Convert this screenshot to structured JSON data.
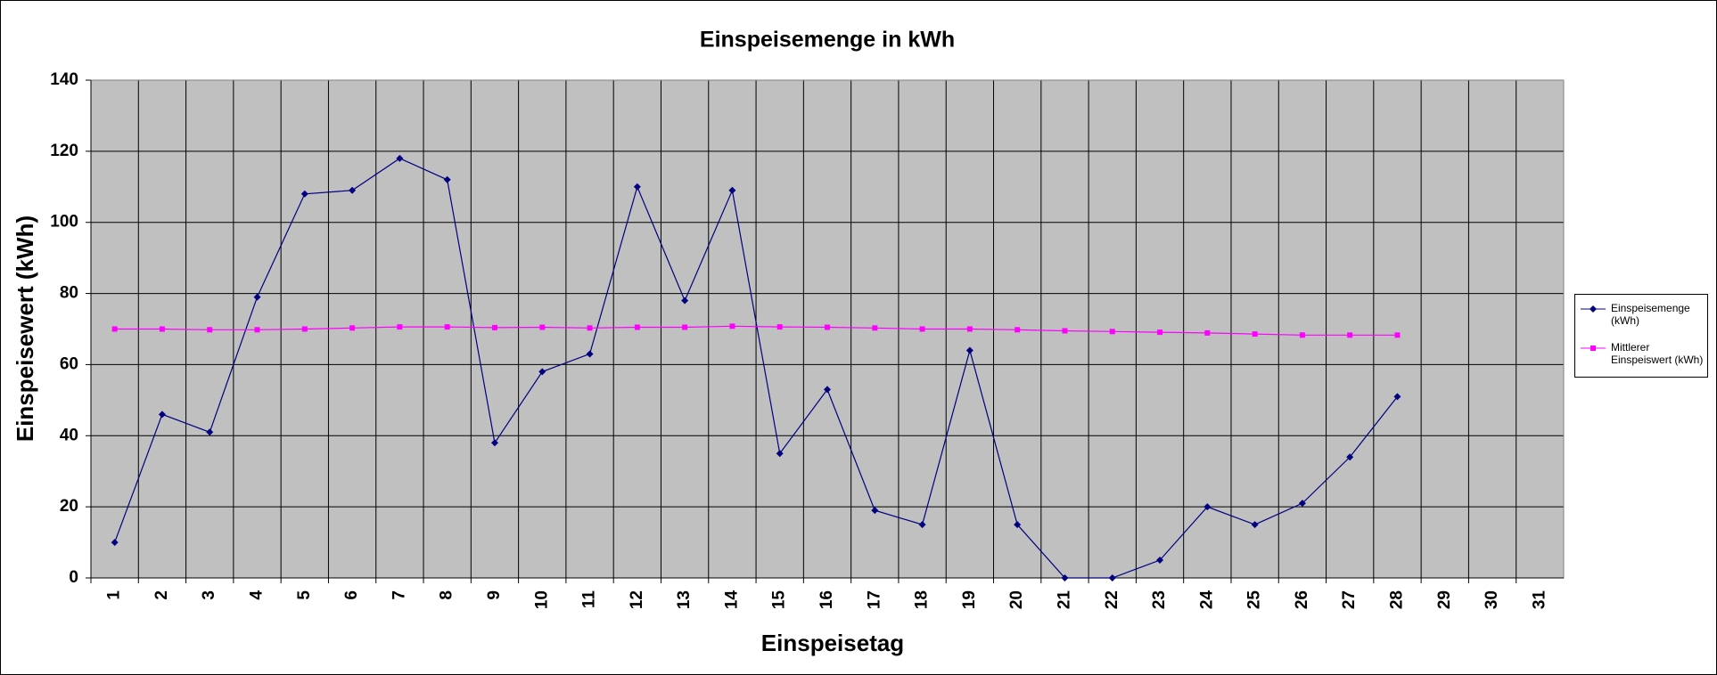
{
  "chart_data": {
    "type": "line",
    "title": "Einspeisemenge in kWh",
    "x_label": "Einspeisetag",
    "y_label": "Einspeisewert  (kWh)",
    "categories": [
      "1",
      "2",
      "3",
      "4",
      "5",
      "6",
      "7",
      "8",
      "9",
      "10",
      "11",
      "12",
      "13",
      "14",
      "15",
      "16",
      "17",
      "18",
      "19",
      "20",
      "21",
      "22",
      "23",
      "24",
      "25",
      "26",
      "27",
      "28",
      "29",
      "30",
      "31"
    ],
    "series": [
      {
        "name": "Einspeisemenge (kWh)",
        "color": "#000080",
        "marker": "diamond",
        "values": [
          10,
          46,
          41,
          79,
          108,
          109,
          118,
          112,
          38,
          58,
          63,
          110,
          78,
          109,
          35,
          53,
          19,
          15,
          64,
          15,
          0,
          0,
          5,
          20,
          15,
          21,
          34,
          51,
          null,
          null,
          null
        ]
      },
      {
        "name": "Mittlerer Einspeiswert (kWh)",
        "color": "#ff00ff",
        "marker": "square",
        "values": [
          70,
          70,
          69.8,
          69.8,
          70,
          70.3,
          70.6,
          70.6,
          70.4,
          70.5,
          70.3,
          70.5,
          70.5,
          70.8,
          70.6,
          70.5,
          70.3,
          70.0,
          70.0,
          69.8,
          69.5,
          69.3,
          69.1,
          68.9,
          68.6,
          68.3,
          68.3,
          68.3,
          null,
          null,
          null
        ]
      }
    ],
    "ylim": [
      0,
      140
    ],
    "yticks": [
      0,
      20,
      40,
      60,
      80,
      100,
      120,
      140
    ],
    "grid": true,
    "legend": "right"
  }
}
